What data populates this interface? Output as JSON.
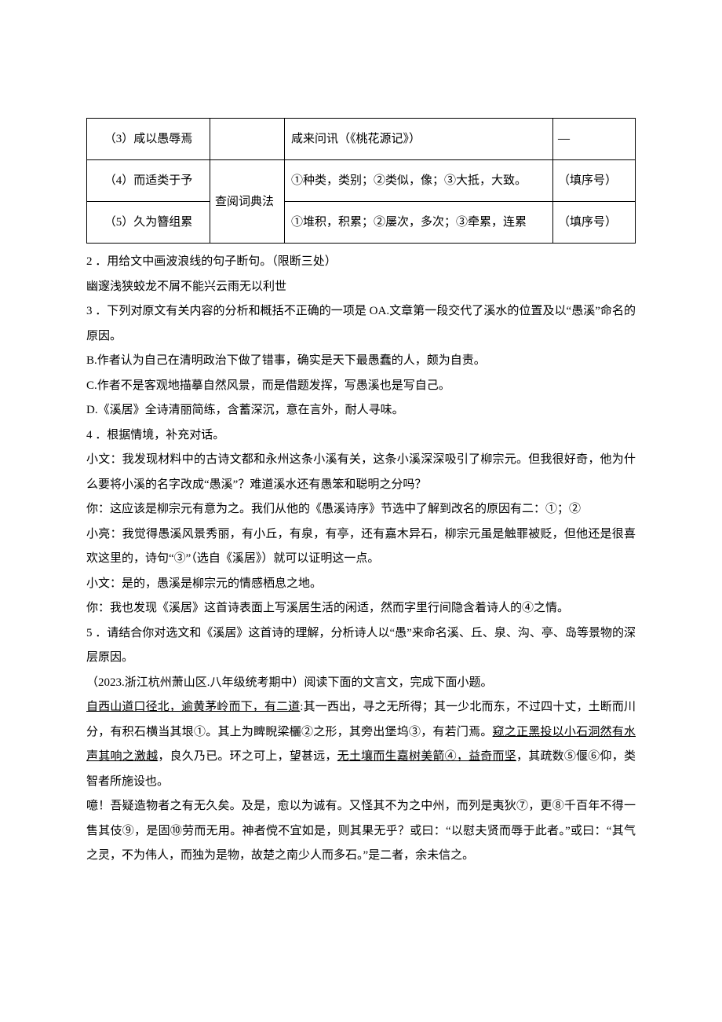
{
  "table": {
    "rows": [
      {
        "c1": "（3）咸以愚辱焉",
        "c2": "",
        "c3": "咸来问讯（《桃花源记》）",
        "c4": "—"
      },
      {
        "c1": "（4）而适类于予",
        "c2": "查阅词典法",
        "c3": "①种类，类别；②类似，像；③大抵，大致。",
        "c4": "（填序号）"
      },
      {
        "c1": "（5）久为簪组累",
        "c3": "①堆积，积累；②屡次，多次；③牵累，连累",
        "c4": "（填序号）"
      }
    ]
  },
  "body": {
    "q2a": "2 ．用给文中画波浪线的句子断句。（限断三处）",
    "q2b": "幽邃浅狭蛟龙不屑不能兴云雨无以利世",
    "q3a": "3 ．下列对原文有关内容的分析和概括不正确的一项是 OA.文章第一段交代了溪水的位置及以“愚溪”命名的原因。",
    "q3b": "B.作者认为自己在清明政治下做了错事，确实是天下最愚蠢的人，颇为自责。",
    "q3c": "C.作者不是客观地描摹自然风景，而是借题发挥，写愚溪也是写自己。",
    "q3d": "D.《溪居》全诗清丽简练，含蓄深沉，意在言外，耐人寻味。",
    "q4a": "4 ．根据情境，补充对话。",
    "q4b": "小文：我发现材料中的古诗文都和永州这条小溪有关，这条小溪深深吸引了柳宗元。但我很好奇，他为什么要将小溪的名字改成“愚溪”？难道溪水还有愚笨和聪明之分吗？",
    "q4c": "你：这应该是柳宗元有意为之。我们从他的《愚溪诗序》节选中了解到改名的原因有二：①；②",
    "q4d": "小亮：我觉得愚溪风景秀丽，有小丘，有泉，有亭，还有嘉木异石，柳宗元虽是触罪被贬，但他还是很喜欢这里的，诗句“③”（选自《溪居》）就可以证明这一点。",
    "q4e": "小文：是的，愚溪是柳宗元的情感栖息之地。",
    "q4f": "你：我也发现《溪居》这首诗表面上写溪居生活的闲适，然而字里行间隐含着诗人的④之情。",
    "q5": "5 ．请结合你对选文和《溪居》这首诗的理解，分析诗人以“愚”来命名溪、丘、泉、沟、亭、岛等景物的深层原因。",
    "src": "（2023.浙江杭州萧山区.八年级统考期中）阅读下面的文言文，完成下面小题。",
    "p1_u1": "自西山道口径北，逾黄茅岭而下，有二道",
    "p1_a": ":其一西出，寻之无所得；其一少北而东，不过四十丈，土断而川分，有积石横当其垠①。其上为睥睨梁欐②之形，其旁出堡坞③，有若门焉。",
    "p1_u2": "窥之正黑投以小石洞然有水声其响之激越",
    "p1_b": "，良久乃已。环之可上，望甚远，",
    "p1_u3": "无土壤而生嘉树美箭④，益奇而坚",
    "p1_c": "，其疏数⑤偃⑥仰，类智者所施设也。",
    "p2": "噫！吾疑造物者之有无久矣。及是，愈以为诚有。又怪其不为之中州，而列是夷狄⑦，更⑧千百年不得一售其伎⑨，是固⑩劳而无用。神者傥不宜如是，则其果无乎？或曰：“以慰夫贤而辱于此者。”或曰：“其气之灵，不为伟人，而独为是物，故楚之南少人而多石。”是二者，余未信之。"
  }
}
